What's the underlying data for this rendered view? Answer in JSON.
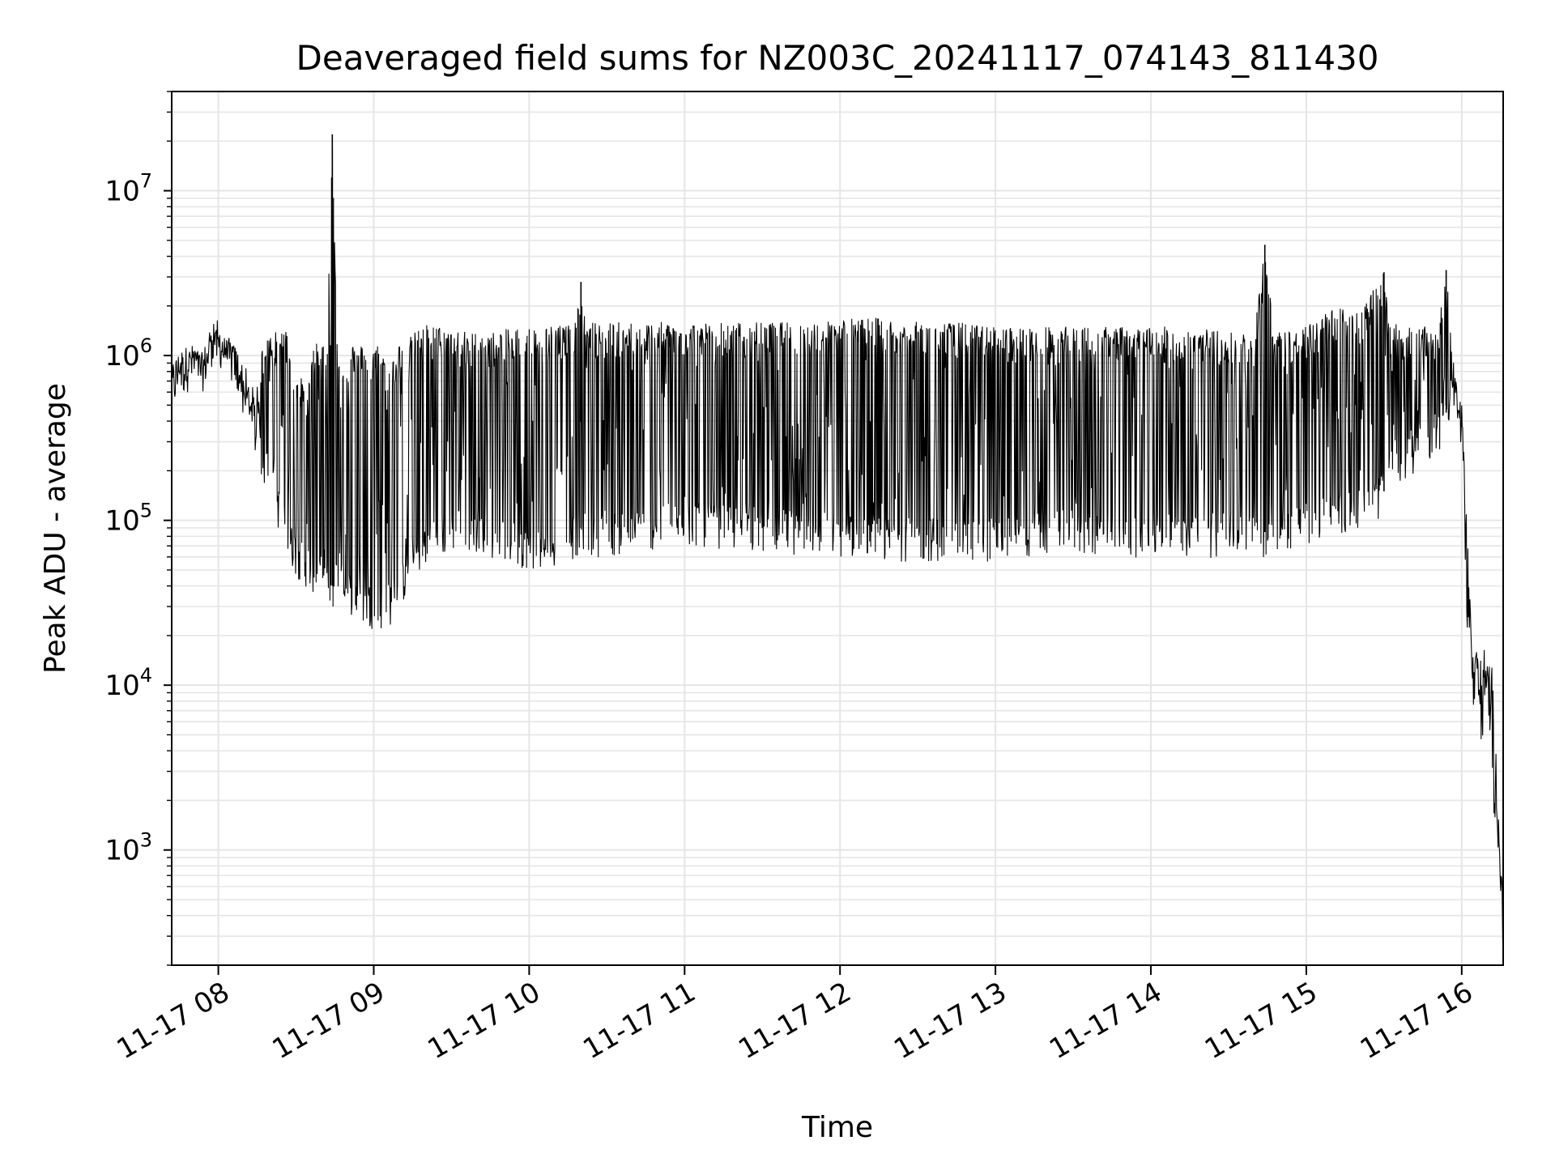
{
  "chart_data": {
    "type": "line",
    "title": "Deaveraged field sums for NZ003C_20241117_074143_811430",
    "xlabel": "Time",
    "ylabel": "Peak ADU - average",
    "yscale": "log",
    "ylim": [
      200,
      40000000
    ],
    "xlim": [
      "2024-11-17 07:42",
      "2024-11-17 16:16"
    ],
    "grid": true,
    "line_color": "#000000",
    "grid_color": "#e5e5e5",
    "x_ticks": [
      {
        "value": "2024-11-17 08:00",
        "label": "11-17 08"
      },
      {
        "value": "2024-11-17 09:00",
        "label": "11-17 09"
      },
      {
        "value": "2024-11-17 10:00",
        "label": "11-17 10"
      },
      {
        "value": "2024-11-17 11:00",
        "label": "11-17 11"
      },
      {
        "value": "2024-11-17 12:00",
        "label": "11-17 12"
      },
      {
        "value": "2024-11-17 13:00",
        "label": "11-17 13"
      },
      {
        "value": "2024-11-17 14:00",
        "label": "11-17 14"
      },
      {
        "value": "2024-11-17 15:00",
        "label": "11-17 15"
      },
      {
        "value": "2024-11-17 16:00",
        "label": "11-17 16"
      }
    ],
    "y_ticks": [
      {
        "value": 1000,
        "base": "10",
        "exp": "3"
      },
      {
        "value": 10000,
        "base": "10",
        "exp": "4"
      },
      {
        "value": 100000,
        "base": "10",
        "exp": "5"
      },
      {
        "value": 1000000,
        "base": "10",
        "exp": "6"
      },
      {
        "value": 10000000,
        "base": "10",
        "exp": "7"
      }
    ],
    "series": [
      {
        "x": [
          "2024-11-17 07:42",
          "2024-11-17 07:46",
          "2024-11-17 07:50",
          "2024-11-17 07:54",
          "2024-11-17 07:58",
          "2024-11-17 08:02",
          "2024-11-17 08:06",
          "2024-11-17 08:10",
          "2024-11-17 08:14",
          "2024-11-17 08:18",
          "2024-11-17 08:22",
          "2024-11-17 08:26",
          "2024-11-17 08:30",
          "2024-11-17 08:34",
          "2024-11-17 08:38",
          "2024-11-17 08:42",
          "2024-11-17 08:44",
          "2024-11-17 08:46",
          "2024-11-17 08:50",
          "2024-11-17 08:54",
          "2024-11-17 08:58",
          "2024-11-17 09:02",
          "2024-11-17 09:06",
          "2024-11-17 09:10",
          "2024-11-17 09:14",
          "2024-11-17 09:18",
          "2024-11-17 09:22",
          "2024-11-17 09:26",
          "2024-11-17 09:30",
          "2024-11-17 09:36",
          "2024-11-17 09:42",
          "2024-11-17 09:48",
          "2024-11-17 09:54",
          "2024-11-17 10:00",
          "2024-11-17 10:06",
          "2024-11-17 10:12",
          "2024-11-17 10:18",
          "2024-11-17 10:20",
          "2024-11-17 10:22",
          "2024-11-17 10:30",
          "2024-11-17 10:40",
          "2024-11-17 10:50",
          "2024-11-17 11:00",
          "2024-11-17 11:15",
          "2024-11-17 11:30",
          "2024-11-17 11:45",
          "2024-11-17 12:00",
          "2024-11-17 12:15",
          "2024-11-17 12:30",
          "2024-11-17 12:45",
          "2024-11-17 13:00",
          "2024-11-17 13:15",
          "2024-11-17 13:30",
          "2024-11-17 13:45",
          "2024-11-17 14:00",
          "2024-11-17 14:15",
          "2024-11-17 14:30",
          "2024-11-17 14:40",
          "2024-11-17 14:44",
          "2024-11-17 14:48",
          "2024-11-17 15:00",
          "2024-11-17 15:10",
          "2024-11-17 15:20",
          "2024-11-17 15:30",
          "2024-11-17 15:32",
          "2024-11-17 15:40",
          "2024-11-17 15:50",
          "2024-11-17 15:54",
          "2024-11-17 15:56",
          "2024-11-17 15:58",
          "2024-11-17 16:00",
          "2024-11-17 16:02",
          "2024-11-17 16:04",
          "2024-11-17 16:06",
          "2024-11-17 16:08",
          "2024-11-17 16:10",
          "2024-11-17 16:12",
          "2024-11-17 16:14",
          "2024-11-17 16:16"
        ],
        "y_base": [
          650000,
          800000,
          900000,
          800000,
          1400000,
          1100000,
          900000,
          550000,
          350000,
          220000,
          150000,
          80000,
          65000,
          55000,
          50000,
          42000,
          40000,
          45000,
          38000,
          35000,
          32000,
          30000,
          32000,
          40000,
          55000,
          70000,
          80000,
          85000,
          90000,
          95000,
          90000,
          80000,
          75000,
          72000,
          70000,
          72000,
          85000,
          90000,
          85000,
          85000,
          90000,
          95000,
          100000,
          95000,
          90000,
          88000,
          85000,
          80000,
          80000,
          80000,
          80000,
          85000,
          90000,
          85000,
          85000,
          82000,
          85000,
          85000,
          85000,
          90000,
          100000,
          110000,
          120000,
          150000,
          200000,
          250000,
          350000,
          450000,
          600000,
          550000,
          180000,
          30000,
          10000,
          10000,
          5000,
          10000,
          10000,
          1500,
          350
        ],
        "y_peak": [
          900000,
          1100000,
          1200000,
          1000000,
          1500000,
          1300000,
          1200000,
          900000,
          600000,
          1400000,
          1400000,
          1500000,
          900000,
          600000,
          1400000,
          1200000,
          22000000,
          1100000,
          1200000,
          1200000,
          1100000,
          1200000,
          900000,
          1200000,
          1300000,
          1500000,
          1600000,
          1500000,
          1500000,
          1400000,
          1400000,
          1400000,
          1500000,
          1500000,
          1500000,
          1600000,
          1600000,
          2800000,
          1600000,
          1600000,
          1600000,
          1600000,
          1600000,
          1600000,
          1600000,
          1600000,
          1700000,
          1700000,
          1600000,
          1600000,
          1500000,
          1500000,
          1500000,
          1500000,
          1500000,
          1500000,
          1400000,
          1400000,
          4700000,
          1400000,
          1500000,
          2000000,
          1900000,
          3200000,
          1600000,
          1500000,
          1500000,
          3300000,
          1300000,
          900000,
          500000,
          100000,
          20000,
          18000,
          18000,
          14000,
          3000,
          1500,
          350
        ]
      }
    ]
  }
}
